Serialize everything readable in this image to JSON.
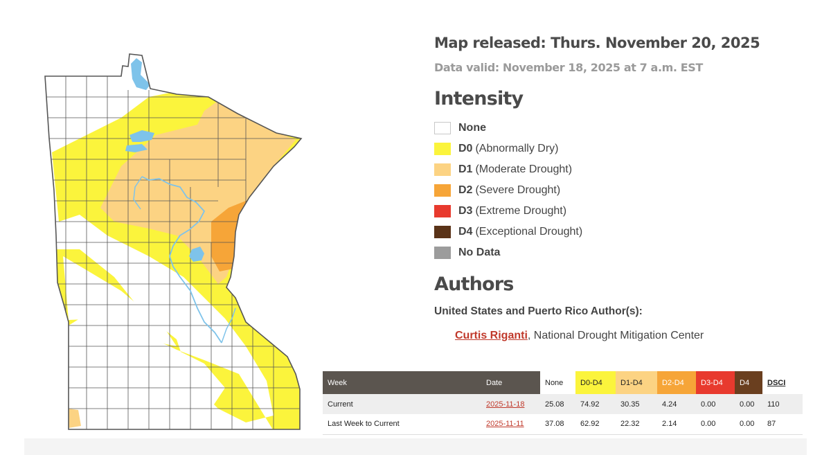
{
  "header": {
    "released": "Map released: Thurs. November 20, 2025",
    "valid": "Data valid: November 18, 2025 at 7 a.m. EST"
  },
  "intensity": {
    "title": "Intensity",
    "items": [
      {
        "code": "None",
        "desc": "",
        "color": "#ffffff"
      },
      {
        "code": "D0",
        "desc": "(Abnormally Dry)",
        "color": "#fbf43c"
      },
      {
        "code": "D1",
        "desc": "(Moderate Drought)",
        "color": "#fcd383"
      },
      {
        "code": "D2",
        "desc": "(Severe Drought)",
        "color": "#f6a538"
      },
      {
        "code": "D3",
        "desc": "(Extreme Drought)",
        "color": "#e83a2e"
      },
      {
        "code": "D4",
        "desc": "(Exceptional Drought)",
        "color": "#5a3318"
      },
      {
        "code": "No Data",
        "desc": "",
        "color": "#9c9c9c"
      }
    ]
  },
  "authors": {
    "title": "Authors",
    "subheading": "United States and Puerto Rico Author(s):",
    "name": "Curtis Riganti",
    "affiliation": ", National Drought Mitigation Center"
  },
  "table": {
    "headers": [
      "Week",
      "Date",
      "None",
      "D0-D4",
      "D1-D4",
      "D2-D4",
      "D3-D4",
      "D4",
      "DSCI"
    ],
    "rows": [
      [
        "Current",
        "2025-11-18",
        "25.08",
        "74.92",
        "30.35",
        "4.24",
        "0.00",
        "0.00",
        "110"
      ],
      [
        "Last Week to Current",
        "2025-11-11",
        "37.08",
        "62.92",
        "22.32",
        "2.14",
        "0.00",
        "0.00",
        "87"
      ]
    ]
  },
  "map": {
    "region": "Minnesota",
    "colors": {
      "d0": "#fbf43c",
      "d1": "#fcd383",
      "d2": "#f6a538",
      "water": "#7ec3ea",
      "border": "#555555"
    }
  }
}
